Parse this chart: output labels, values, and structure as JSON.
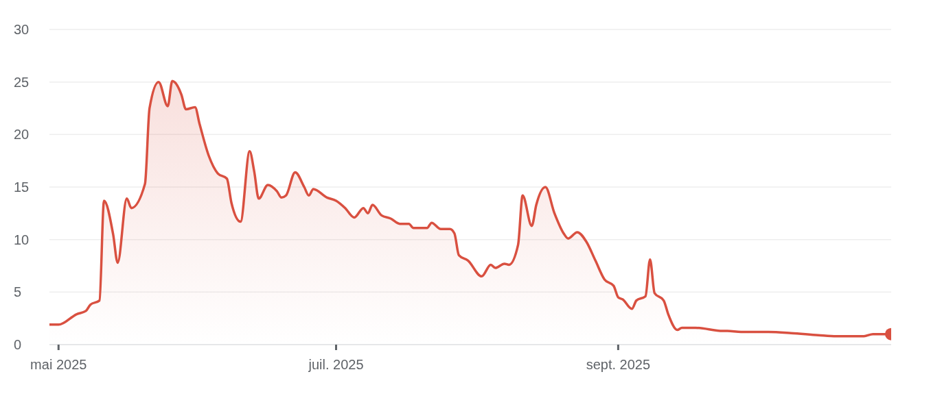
{
  "chart_data": {
    "type": "area",
    "x": [
      "2025-04-29",
      "2025-05-01",
      "2025-05-05",
      "2025-05-07",
      "2025-05-08",
      "2025-05-10",
      "2025-05-11",
      "2025-05-13",
      "2025-05-14",
      "2025-05-16",
      "2025-05-17",
      "2025-05-20",
      "2025-05-21",
      "2025-05-23",
      "2025-05-25",
      "2025-05-26",
      "2025-05-28",
      "2025-05-29",
      "2025-05-31",
      "2025-06-01",
      "2025-06-03",
      "2025-06-05",
      "2025-06-07",
      "2025-06-08",
      "2025-06-10",
      "2025-06-12",
      "2025-06-13",
      "2025-06-14",
      "2025-06-16",
      "2025-06-18",
      "2025-06-19",
      "2025-06-20",
      "2025-06-22",
      "2025-06-24",
      "2025-06-25",
      "2025-06-26",
      "2025-06-29",
      "2025-07-01",
      "2025-07-03",
      "2025-07-05",
      "2025-07-07",
      "2025-07-08",
      "2025-07-09",
      "2025-07-11",
      "2025-07-13",
      "2025-07-15",
      "2025-07-17",
      "2025-07-18",
      "2025-07-21",
      "2025-07-22",
      "2025-07-24",
      "2025-07-26",
      "2025-07-27",
      "2025-07-28",
      "2025-07-30",
      "2025-08-02",
      "2025-08-04",
      "2025-08-05",
      "2025-08-07",
      "2025-08-08",
      "2025-08-10",
      "2025-08-11",
      "2025-08-13",
      "2025-08-14",
      "2025-08-16",
      "2025-08-18",
      "2025-08-20",
      "2025-08-21",
      "2025-08-23",
      "2025-08-25",
      "2025-08-27",
      "2025-08-29",
      "2025-08-31",
      "2025-09-01",
      "2025-09-02",
      "2025-09-04",
      "2025-09-05",
      "2025-09-07",
      "2025-09-08",
      "2025-09-09",
      "2025-09-11",
      "2025-09-12",
      "2025-09-14",
      "2025-09-15",
      "2025-09-18",
      "2025-09-24",
      "2025-09-25",
      "2025-09-28",
      "2025-10-04",
      "2025-10-09",
      "2025-10-15",
      "2025-10-19",
      "2025-10-23",
      "2025-10-25",
      "2025-10-27",
      "2025-10-28",
      "2025-10-31"
    ],
    "series": [
      {
        "color": "#d95040",
        "values": [
          1.9,
          1.9,
          2.9,
          3.2,
          3.8,
          4.2,
          13.7,
          10.5,
          7.8,
          13.9,
          13.0,
          15.3,
          22.5,
          25.0,
          22.7,
          25.1,
          23.8,
          22.4,
          22.6,
          21.0,
          18.0,
          16.3,
          15.8,
          13.5,
          11.7,
          18.4,
          16.5,
          13.9,
          15.2,
          14.6,
          14.0,
          14.2,
          16.4,
          15.0,
          14.2,
          14.8,
          14.0,
          13.7,
          13.0,
          12.1,
          13.0,
          12.5,
          13.3,
          12.3,
          12.0,
          11.5,
          11.5,
          11.1,
          11.1,
          11.6,
          11.0,
          11.0,
          10.6,
          8.5,
          8.0,
          6.5,
          7.6,
          7.3,
          7.7,
          7.6,
          9.5,
          14.2,
          11.3,
          13.3,
          15.0,
          12.5,
          10.6,
          10.1,
          10.7,
          9.8,
          8.0,
          6.2,
          5.6,
          4.5,
          4.3,
          3.4,
          4.2,
          4.6,
          8.1,
          4.9,
          4.2,
          2.9,
          1.4,
          1.6,
          1.6,
          1.3,
          1.3,
          1.2,
          1.2,
          1.1,
          0.9,
          0.8,
          0.8,
          0.8,
          1.0,
          1.0,
          1.0
        ]
      }
    ],
    "xlim": [
      "2025-04-29",
      "2025-10-31"
    ],
    "xticks": [
      {
        "value": "2025-05-01",
        "label": "mai 2025"
      },
      {
        "value": "2025-07-01",
        "label": "juil. 2025"
      },
      {
        "value": "2025-09-01",
        "label": "sept. 2025"
      }
    ],
    "ylim": [
      0,
      30
    ],
    "yticks": [
      0,
      5,
      10,
      15,
      20,
      25,
      30
    ],
    "grid": "y",
    "marker": "none",
    "line_style": "solid",
    "legend": false
  }
}
